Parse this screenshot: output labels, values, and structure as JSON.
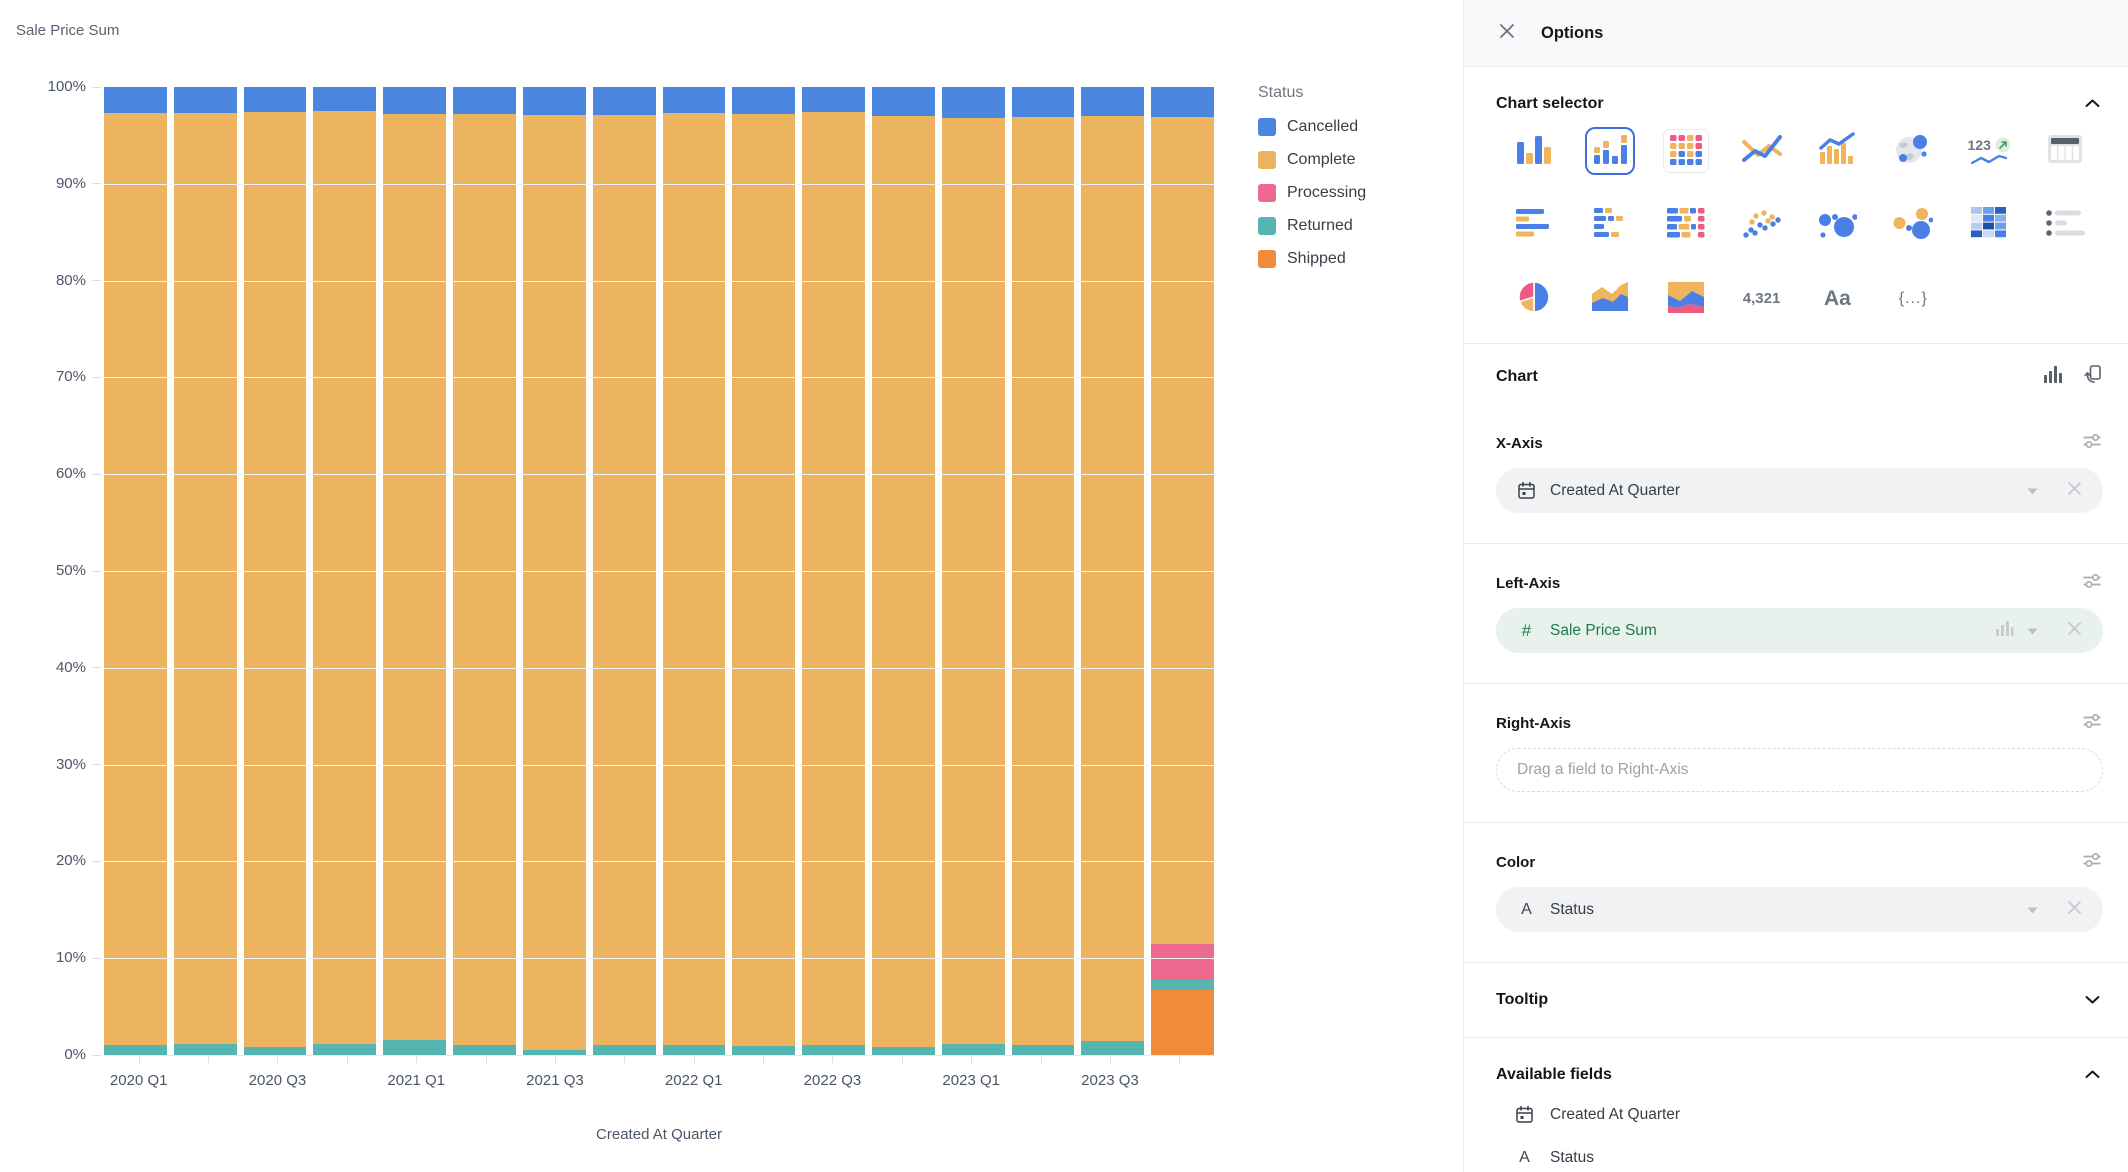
{
  "chart": {
    "legend": {
      "title": "Status",
      "items": [
        {
          "label": "Cancelled",
          "color": "#4A86E0"
        },
        {
          "label": "Complete",
          "color": "#ECB45F"
        },
        {
          "label": "Processing",
          "color": "#EC6A90"
        },
        {
          "label": "Returned",
          "color": "#55B5B1"
        },
        {
          "label": "Shipped",
          "color": "#EF8B3B"
        }
      ]
    }
  },
  "chart_data": {
    "type": "bar",
    "stacked": true,
    "normalized": "percent",
    "title": "Sale Price Sum",
    "xlabel": "Created At Quarter",
    "ylabel": "",
    "ylim": [
      0,
      100
    ],
    "grid": true,
    "legend_position": "right",
    "y_ticks": [
      "100%",
      "90%",
      "80%",
      "70%",
      "60%",
      "50%",
      "40%",
      "30%",
      "20%",
      "10%",
      "0%"
    ],
    "categories": [
      "2020 Q1",
      "2020 Q2",
      "2020 Q3",
      "2020 Q4",
      "2021 Q1",
      "2021 Q2",
      "2021 Q3",
      "2021 Q4",
      "2022 Q1",
      "2022 Q2",
      "2022 Q3",
      "2022 Q4",
      "2023 Q1",
      "2023 Q2",
      "2023 Q3",
      "2023 Q4"
    ],
    "x_tick_labels": [
      "2020 Q1",
      "2020 Q3",
      "2021 Q1",
      "2021 Q3",
      "2022 Q1",
      "2022 Q3",
      "2023 Q1",
      "2023 Q3"
    ],
    "stack_order_bottom_to_top": [
      "Shipped",
      "Returned",
      "Processing",
      "Complete",
      "Cancelled"
    ],
    "series": [
      {
        "name": "Cancelled",
        "color": "#4A86E0",
        "values": [
          2.7,
          2.7,
          2.6,
          2.5,
          2.8,
          2.8,
          2.9,
          2.9,
          2.7,
          2.8,
          2.6,
          3.0,
          3.2,
          3.1,
          3.0,
          3.1
        ]
      },
      {
        "name": "Complete",
        "color": "#ECB45F",
        "values": [
          96.3,
          96.2,
          96.6,
          96.4,
          95.7,
          96.2,
          96.6,
          96.1,
          96.3,
          96.3,
          96.4,
          96.2,
          95.7,
          95.9,
          95.6,
          85.4
        ]
      },
      {
        "name": "Processing",
        "color": "#EC6A90",
        "values": [
          0,
          0,
          0,
          0,
          0,
          0,
          0,
          0,
          0,
          0,
          0,
          0,
          0,
          0,
          0,
          3.8
        ]
      },
      {
        "name": "Returned",
        "color": "#55B5B1",
        "values": [
          1.0,
          1.1,
          0.8,
          1.1,
          1.5,
          1.0,
          0.5,
          1.0,
          1.0,
          0.9,
          1.0,
          0.8,
          1.1,
          1.0,
          1.4,
          1.0
        ]
      },
      {
        "name": "Shipped",
        "color": "#EF8B3B",
        "values": [
          0,
          0,
          0,
          0,
          0,
          0,
          0,
          0,
          0,
          0,
          0,
          0,
          0,
          0,
          0,
          6.7
        ]
      }
    ]
  },
  "panel": {
    "title": "Options",
    "accent_color": "#3E6DE0",
    "chart_selector": {
      "label": "Chart selector",
      "rows": [
        [
          {
            "name": "bar-chart"
          },
          {
            "name": "stacked-bar-chart",
            "selected": true
          },
          {
            "name": "grid-chart",
            "tiled": true
          },
          {
            "name": "line-chart"
          },
          {
            "name": "combo-chart"
          },
          {
            "name": "map-chart"
          },
          {
            "name": "trend-chart",
            "text": "123"
          },
          {
            "name": "table-chart"
          }
        ],
        [
          {
            "name": "horizontal-bar-chart"
          },
          {
            "name": "stacked-horizontal-bar-chart"
          },
          {
            "name": "grid-horizontal-chart"
          },
          {
            "name": "scatter-chart"
          },
          {
            "name": "bubble-chart"
          },
          {
            "name": "bubble-color-chart"
          },
          {
            "name": "heatmap-chart"
          },
          {
            "name": "legend-list-chart"
          }
        ],
        [
          {
            "name": "pie-chart"
          },
          {
            "name": "area-chart"
          },
          {
            "name": "stacked-area-chart"
          },
          {
            "name": "big-number",
            "text": "4,321"
          },
          {
            "name": "text-card",
            "text": "Aa"
          },
          {
            "name": "json-card",
            "text": "{...}"
          }
        ]
      ]
    },
    "chart_section": {
      "label": "Chart"
    },
    "x_axis": {
      "label": "X-Axis",
      "field": "Created At Quarter",
      "field_type": "date"
    },
    "left_axis": {
      "label": "Left-Axis",
      "field": "Sale Price Sum",
      "field_type": "number",
      "value_color": "#1C7C4D",
      "pill_bg": "#E8F1EC"
    },
    "right_axis": {
      "label": "Right-Axis",
      "placeholder": "Drag a field to Right-Axis"
    },
    "color_section": {
      "label": "Color",
      "field": "Status",
      "field_type": "text"
    },
    "tooltip": {
      "label": "Tooltip",
      "collapsed": true
    },
    "available_fields": {
      "label": "Available fields",
      "items": [
        {
          "name": "Created At Quarter",
          "type": "date"
        },
        {
          "name": "Status",
          "type": "text"
        }
      ]
    }
  }
}
